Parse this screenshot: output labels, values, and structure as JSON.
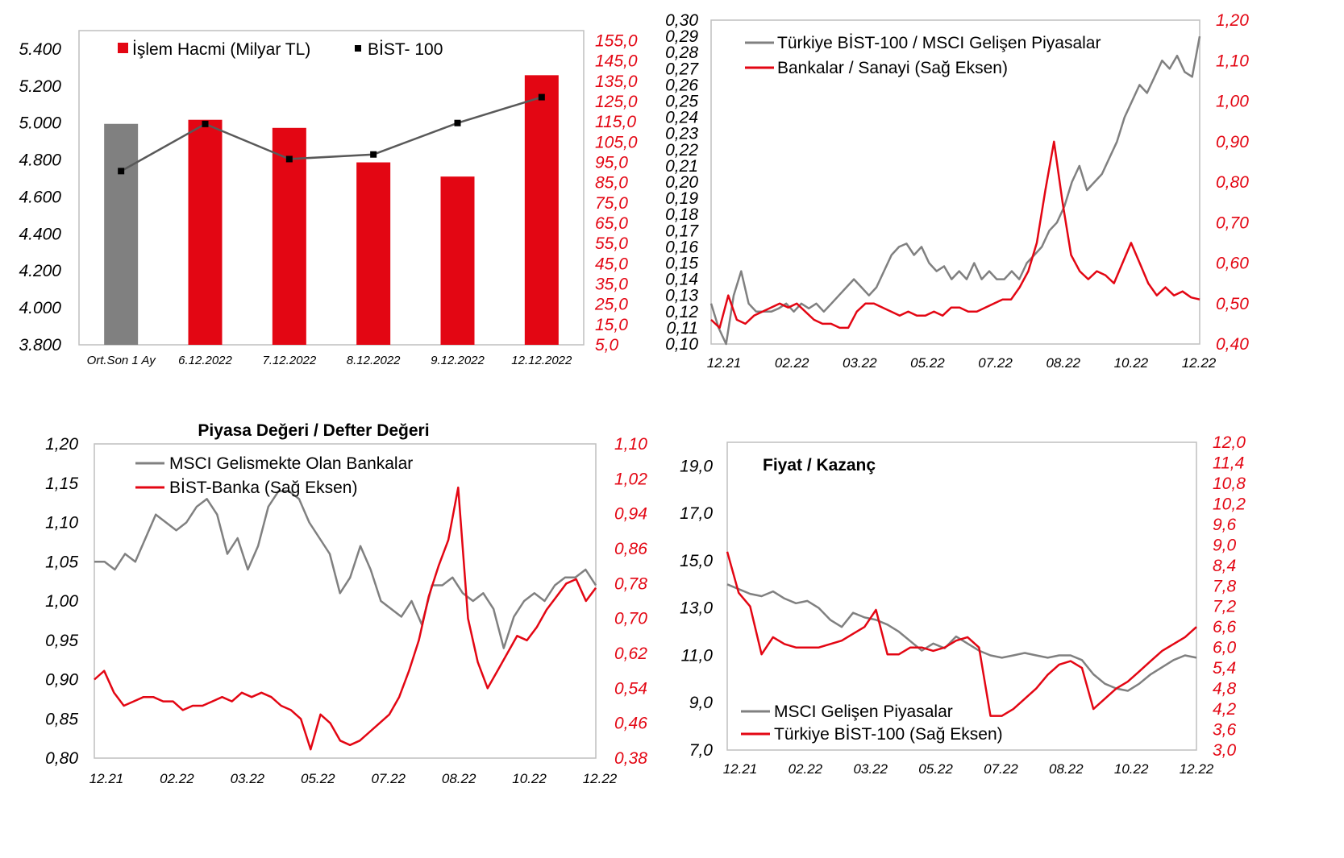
{
  "colors": {
    "red": "#e30613",
    "gray": "#808080",
    "darkgray": "#595959",
    "black": "#000000"
  },
  "chart_data": [
    {
      "type": "bar",
      "title": "",
      "categories": [
        "Ort.Son 1 Ay",
        "6.12.2022",
        "7.12.2022",
        "8.12.2022",
        "9.12.2022",
        "12.12.2022"
      ],
      "series": [
        {
          "name": "İşlem Hacmi (Milyar TL)",
          "axis": "right",
          "type": "bar",
          "values": [
            114,
            116,
            112,
            95,
            88,
            138
          ],
          "colors": [
            "#808080",
            "#e30613",
            "#e30613",
            "#e30613",
            "#e30613",
            "#e30613"
          ]
        },
        {
          "name": "BİST- 100",
          "axis": "left",
          "type": "line",
          "values": [
            4740,
            4995,
            4805,
            4830,
            5000,
            5140
          ]
        }
      ],
      "ylim_left": [
        3800,
        5500
      ],
      "yticks_left": [
        "3.800",
        "4.000",
        "4.200",
        "4.400",
        "4.600",
        "4.800",
        "5.000",
        "5.200",
        "5.400"
      ],
      "yticks_left_values": [
        3800,
        4000,
        4200,
        4400,
        4600,
        4800,
        5000,
        5200,
        5400
      ],
      "ylim_right": [
        5,
        160
      ],
      "yticks_right": [
        "5,0",
        "15,0",
        "25,0",
        "35,0",
        "45,0",
        "55,0",
        "65,0",
        "75,0",
        "85,0",
        "95,0",
        "105,0",
        "115,0",
        "125,0",
        "135,0",
        "145,0",
        "155,0"
      ],
      "yticks_right_values": [
        5,
        15,
        25,
        35,
        45,
        55,
        65,
        75,
        85,
        95,
        105,
        115,
        125,
        135,
        145,
        155
      ],
      "legend": "top"
    },
    {
      "type": "line",
      "title": "",
      "x_labels": [
        "12.21",
        "02.22",
        "03.22",
        "05.22",
        "07.22",
        "08.22",
        "10.22",
        "12.22"
      ],
      "series": [
        {
          "name": "Türkiye BİST-100 / MSCI Gelişen Piyasalar",
          "axis": "left",
          "color": "#808080",
          "values": [
            0.125,
            0.11,
            0.1,
            0.13,
            0.145,
            0.125,
            0.12,
            0.12,
            0.12,
            0.122,
            0.125,
            0.12,
            0.125,
            0.122,
            0.125,
            0.12,
            0.125,
            0.13,
            0.135,
            0.14,
            0.135,
            0.13,
            0.135,
            0.145,
            0.155,
            0.16,
            0.162,
            0.155,
            0.16,
            0.15,
            0.145,
            0.148,
            0.14,
            0.145,
            0.14,
            0.15,
            0.14,
            0.145,
            0.14,
            0.14,
            0.145,
            0.14,
            0.15,
            0.155,
            0.16,
            0.17,
            0.175,
            0.185,
            0.2,
            0.21,
            0.195,
            0.2,
            0.205,
            0.215,
            0.225,
            0.24,
            0.25,
            0.26,
            0.255,
            0.265,
            0.275,
            0.27,
            0.278,
            0.268,
            0.265,
            0.29
          ]
        },
        {
          "name": "Bankalar / Sanayi (Sağ Eksen)",
          "axis": "right",
          "color": "#e30613",
          "values": [
            0.46,
            0.44,
            0.52,
            0.46,
            0.45,
            0.47,
            0.48,
            0.49,
            0.5,
            0.49,
            0.5,
            0.48,
            0.46,
            0.45,
            0.45,
            0.44,
            0.44,
            0.48,
            0.5,
            0.5,
            0.49,
            0.48,
            0.47,
            0.48,
            0.47,
            0.47,
            0.48,
            0.47,
            0.49,
            0.49,
            0.48,
            0.48,
            0.49,
            0.5,
            0.51,
            0.51,
            0.54,
            0.58,
            0.65,
            0.78,
            0.9,
            0.75,
            0.62,
            0.58,
            0.56,
            0.58,
            0.57,
            0.55,
            0.6,
            0.65,
            0.6,
            0.55,
            0.52,
            0.54,
            0.52,
            0.53,
            0.515,
            0.51
          ]
        }
      ],
      "ylim_left": [
        0.1,
        0.3
      ],
      "yticks_left": [
        "0,10",
        "0,11",
        "0,12",
        "0,13",
        "0,14",
        "0,15",
        "0,16",
        "0,17",
        "0,18",
        "0,19",
        "0,20",
        "0,21",
        "0,22",
        "0,23",
        "0,24",
        "0,25",
        "0,26",
        "0,27",
        "0,28",
        "0,29",
        "0,30"
      ],
      "ylim_right": [
        0.4,
        1.2
      ],
      "yticks_right": [
        "0,40",
        "0,50",
        "0,60",
        "0,70",
        "0,80",
        "0,90",
        "1,00",
        "1,10",
        "1,20"
      ],
      "legend": "top-left"
    },
    {
      "type": "line",
      "title": "Piyasa Değeri / Defter Değeri",
      "x_labels": [
        "12.21",
        "02.22",
        "03.22",
        "05.22",
        "07.22",
        "08.22",
        "10.22",
        "12.22"
      ],
      "series": [
        {
          "name": "MSCI Gelismekte Olan Bankalar",
          "axis": "left",
          "color": "#808080",
          "values": [
            1.05,
            1.05,
            1.04,
            1.06,
            1.05,
            1.08,
            1.11,
            1.1,
            1.09,
            1.1,
            1.12,
            1.13,
            1.11,
            1.06,
            1.08,
            1.04,
            1.07,
            1.12,
            1.14,
            1.14,
            1.13,
            1.1,
            1.08,
            1.06,
            1.01,
            1.03,
            1.07,
            1.04,
            1.0,
            0.99,
            0.98,
            1.0,
            0.97,
            1.02,
            1.02,
            1.03,
            1.01,
            1.0,
            1.01,
            0.99,
            0.94,
            0.98,
            1.0,
            1.01,
            1.0,
            1.02,
            1.03,
            1.03,
            1.04,
            1.02
          ]
        },
        {
          "name": "BİST-Banka (Sağ Eksen)",
          "axis": "right",
          "color": "#e30613",
          "values": [
            0.56,
            0.58,
            0.53,
            0.5,
            0.51,
            0.52,
            0.52,
            0.51,
            0.51,
            0.49,
            0.5,
            0.5,
            0.51,
            0.52,
            0.51,
            0.53,
            0.52,
            0.53,
            0.52,
            0.5,
            0.49,
            0.47,
            0.4,
            0.48,
            0.46,
            0.42,
            0.41,
            0.42,
            0.44,
            0.46,
            0.48,
            0.52,
            0.58,
            0.65,
            0.75,
            0.82,
            0.88,
            1.0,
            0.7,
            0.6,
            0.54,
            0.58,
            0.62,
            0.66,
            0.65,
            0.68,
            0.72,
            0.75,
            0.78,
            0.79,
            0.74,
            0.77
          ]
        }
      ],
      "ylim_left": [
        0.8,
        1.2
      ],
      "yticks_left": [
        "0,80",
        "0,85",
        "0,90",
        "0,95",
        "1,00",
        "1,05",
        "1,10",
        "1,15",
        "1,20"
      ],
      "ylim_right": [
        0.38,
        1.1
      ],
      "yticks_right": [
        "0,38",
        "0,46",
        "0,54",
        "0,62",
        "0,70",
        "0,78",
        "0,86",
        "0,94",
        "1,02",
        "1,10"
      ],
      "legend": "top-left"
    },
    {
      "type": "line",
      "title": "Fiyat / Kazanç",
      "x_labels": [
        "12.21",
        "02.22",
        "03.22",
        "05.22",
        "07.22",
        "08.22",
        "10.22",
        "12.22"
      ],
      "series": [
        {
          "name": "MSCI Gelişen Piyasalar",
          "axis": "left",
          "color": "#808080",
          "values": [
            14.0,
            13.8,
            13.6,
            13.5,
            13.7,
            13.4,
            13.2,
            13.3,
            13.0,
            12.5,
            12.2,
            12.8,
            12.6,
            12.5,
            12.3,
            12.0,
            11.6,
            11.2,
            11.5,
            11.3,
            11.8,
            11.5,
            11.2,
            11.0,
            10.9,
            11.0,
            11.1,
            11.0,
            10.9,
            11.0,
            11.0,
            10.8,
            10.2,
            9.8,
            9.6,
            9.5,
            9.8,
            10.2,
            10.5,
            10.8,
            11.0,
            10.9
          ]
        },
        {
          "name": "Türkiye BİST-100 (Sağ Eksen)",
          "axis": "right",
          "color": "#e30613",
          "values": [
            8.8,
            7.6,
            7.2,
            5.8,
            6.3,
            6.1,
            6.0,
            6.0,
            6.0,
            6.1,
            6.2,
            6.4,
            6.6,
            7.1,
            5.8,
            5.8,
            6.0,
            6.0,
            5.9,
            6.0,
            6.2,
            6.3,
            6.0,
            4.0,
            4.0,
            4.2,
            4.5,
            4.8,
            5.2,
            5.5,
            5.6,
            5.4,
            4.2,
            4.5,
            4.8,
            5.0,
            5.3,
            5.6,
            5.9,
            6.1,
            6.3,
            6.6
          ]
        }
      ],
      "ylim_left": [
        7.0,
        20.0
      ],
      "yticks_left": [
        "7,0",
        "9,0",
        "11,0",
        "13,0",
        "15,0",
        "17,0",
        "19,0"
      ],
      "yticks_left_values": [
        7,
        9,
        11,
        13,
        15,
        17,
        19
      ],
      "ylim_right": [
        3.0,
        12.0
      ],
      "yticks_right": [
        "3,0",
        "3,6",
        "4,2",
        "4,8",
        "5,4",
        "6,0",
        "6,6",
        "7,2",
        "7,8",
        "8,4",
        "9,0",
        "9,6",
        "10,2",
        "10,8",
        "11,4",
        "12,0"
      ],
      "legend": "bottom-left"
    }
  ]
}
